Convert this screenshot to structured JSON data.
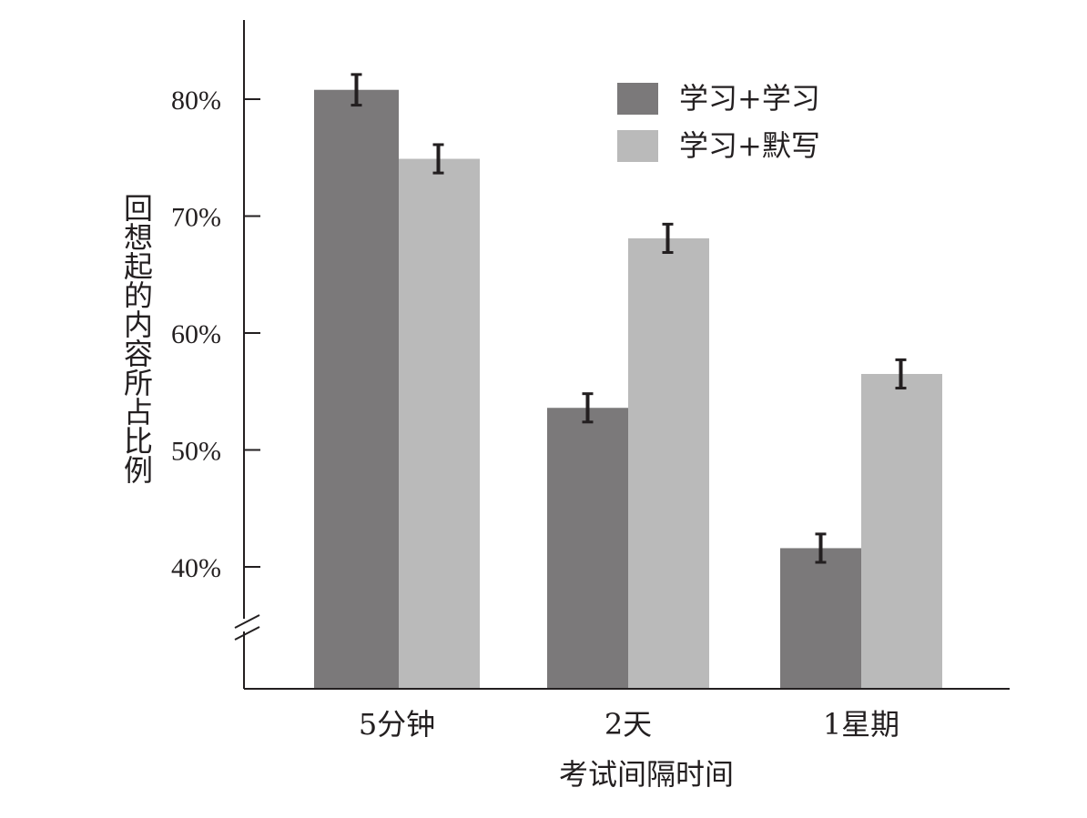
{
  "chart_data": {
    "type": "bar",
    "categories": [
      "5分钟",
      "2天",
      "1星期"
    ],
    "series": [
      {
        "name": "学习+学习",
        "values": [
          80.8,
          53.6,
          41.6
        ],
        "errors": [
          1.0,
          0.9,
          0.9
        ],
        "color": "#7b797a"
      },
      {
        "name": "学习+默写",
        "values": [
          74.9,
          68.1,
          56.5
        ],
        "errors": [
          0.9,
          0.9,
          0.9
        ],
        "color": "#bababa"
      }
    ],
    "xlabel": "考试间隔时间",
    "ylabel": "回想起的内容所占比例",
    "yticks": [
      40,
      50,
      60,
      70,
      80
    ],
    "ytick_labels": [
      "40%",
      "50%",
      "60%",
      "70%",
      "80%"
    ],
    "ylim": [
      30,
      86
    ],
    "axis_break": true,
    "grid": false,
    "legend": "top-right",
    "colors": {
      "axis": "#231f20",
      "dark_bar": "#7b797a",
      "light_bar": "#bababa"
    }
  }
}
